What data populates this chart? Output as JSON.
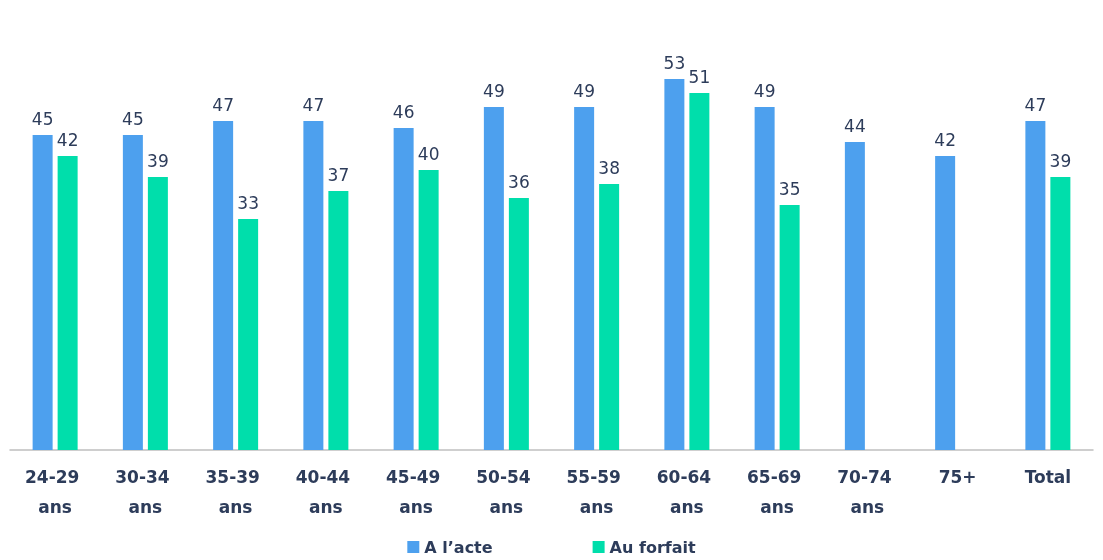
{
  "chart_data": {
    "type": "bar",
    "categories": [
      "24-29 ans",
      "30-34 ans",
      "35-39 ans",
      "40-44 ans",
      "45-49 ans",
      "50-54 ans",
      "55-59 ans",
      "60-64 ans",
      "65-69 ans",
      "70-74 ans",
      "75+",
      "Total"
    ],
    "series": [
      {
        "name": "A l’acte",
        "color": "#4da0ee",
        "values": [
          45,
          45,
          47,
          47,
          46,
          49,
          49,
          53,
          49,
          44,
          42,
          47
        ]
      },
      {
        "name": "Au forfait",
        "color": "#00deab",
        "values": [
          42,
          39,
          33,
          37,
          40,
          36,
          38,
          51,
          35,
          null,
          null,
          39
        ]
      }
    ],
    "data_labels": true,
    "legend": "bottom"
  }
}
